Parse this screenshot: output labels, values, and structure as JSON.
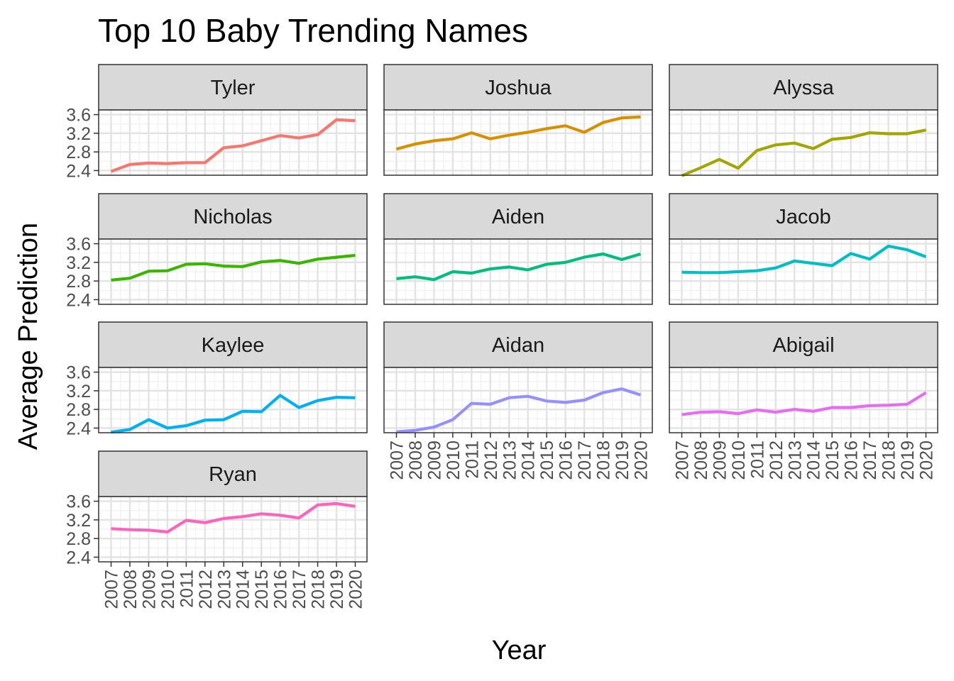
{
  "chart_data": {
    "type": "line",
    "title": "Top 10 Baby Trending Names",
    "xlabel": "Year",
    "ylabel": "Average Prediction",
    "x": [
      2007,
      2008,
      2009,
      2010,
      2011,
      2012,
      2013,
      2014,
      2015,
      2016,
      2017,
      2018,
      2019,
      2020
    ],
    "yticks": [
      2.4,
      2.8,
      3.2,
      3.6
    ],
    "ylim": [
      2.3,
      3.7
    ],
    "grid": true,
    "facets": "4 rows x 3 columns, free x-axis ticks on bottom panel of each column",
    "series": [
      {
        "name": "Tyler",
        "color": "#F8766D",
        "values": [
          2.38,
          2.53,
          2.56,
          2.55,
          2.57,
          2.57,
          2.89,
          2.93,
          3.04,
          3.15,
          3.1,
          3.17,
          3.49,
          3.47
        ]
      },
      {
        "name": "Joshua",
        "color": "#D89000",
        "values": [
          2.86,
          2.97,
          3.04,
          3.08,
          3.21,
          3.08,
          3.16,
          3.22,
          3.3,
          3.36,
          3.22,
          3.43,
          3.53,
          3.55
        ]
      },
      {
        "name": "Alyssa",
        "color": "#A3A500",
        "values": [
          2.29,
          2.46,
          2.64,
          2.45,
          2.83,
          2.95,
          2.99,
          2.87,
          3.07,
          3.11,
          3.21,
          3.19,
          3.19,
          3.27
        ]
      },
      {
        "name": "Nicholas",
        "color": "#39B600",
        "values": [
          2.82,
          2.86,
          3.01,
          3.02,
          3.16,
          3.17,
          3.12,
          3.11,
          3.21,
          3.24,
          3.18,
          3.27,
          3.31,
          3.35
        ]
      },
      {
        "name": "Aiden",
        "color": "#00BF7D",
        "values": [
          2.85,
          2.89,
          2.83,
          3.0,
          2.97,
          3.06,
          3.1,
          3.04,
          3.16,
          3.2,
          3.31,
          3.38,
          3.26,
          3.38
        ]
      },
      {
        "name": "Jacob",
        "color": "#00BFC4",
        "values": [
          2.99,
          2.98,
          2.98,
          3.0,
          3.02,
          3.08,
          3.23,
          3.18,
          3.13,
          3.39,
          3.27,
          3.55,
          3.47,
          3.32
        ]
      },
      {
        "name": "Kaylee",
        "color": "#00B0F6",
        "values": [
          2.31,
          2.37,
          2.58,
          2.4,
          2.45,
          2.57,
          2.58,
          2.76,
          2.75,
          3.1,
          2.84,
          2.99,
          3.06,
          3.05
        ]
      },
      {
        "name": "Aidan",
        "color": "#9590FF",
        "values": [
          2.32,
          2.35,
          2.42,
          2.58,
          2.93,
          2.91,
          3.05,
          3.08,
          2.98,
          2.95,
          3.0,
          3.16,
          3.24,
          3.11
        ]
      },
      {
        "name": "Abigail",
        "color": "#E76BF3",
        "values": [
          2.69,
          2.74,
          2.75,
          2.71,
          2.79,
          2.74,
          2.8,
          2.76,
          2.84,
          2.84,
          2.88,
          2.89,
          2.91,
          3.16
        ]
      },
      {
        "name": "Ryan",
        "color": "#FF62BC",
        "values": [
          3.01,
          2.99,
          2.98,
          2.94,
          3.19,
          3.14,
          3.23,
          3.27,
          3.33,
          3.3,
          3.24,
          3.52,
          3.55,
          3.49
        ]
      }
    ]
  }
}
